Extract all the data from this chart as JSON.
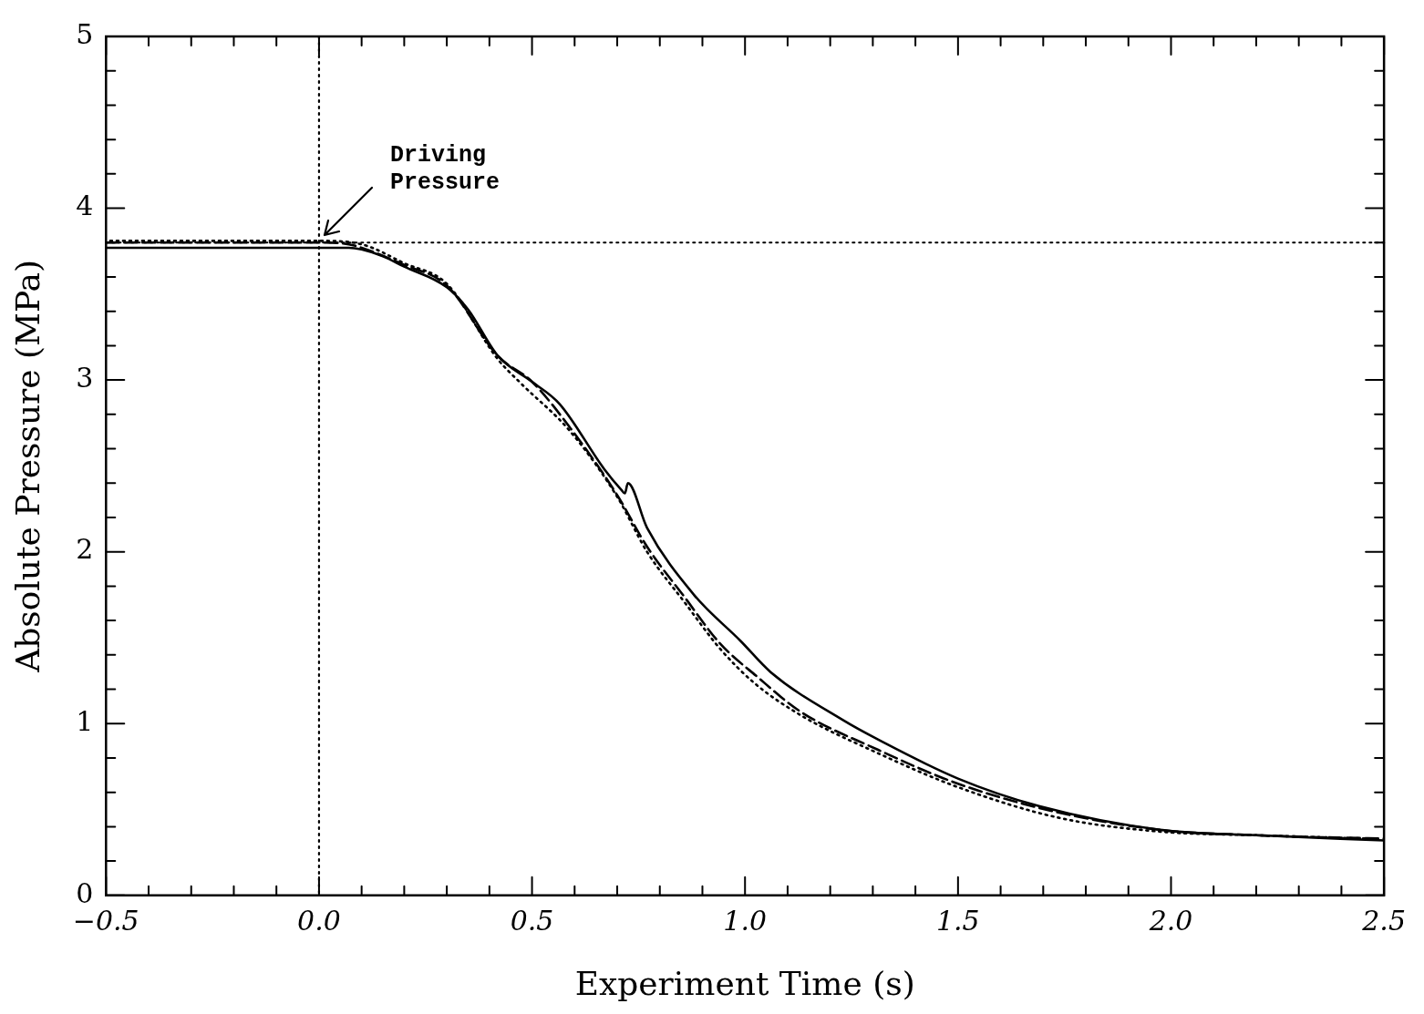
{
  "chart_data": {
    "type": "line",
    "xlabel": "Experiment Time (s)",
    "ylabel": "Absolute Pressure (MPa)",
    "xlim": [
      -0.5,
      2.5
    ],
    "ylim": [
      0,
      5
    ],
    "xticks": [
      {
        "value": -0.5,
        "label": "−0.5"
      },
      {
        "value": -0.4,
        "label": null
      },
      {
        "value": -0.3,
        "label": null
      },
      {
        "value": -0.2,
        "label": null
      },
      {
        "value": -0.1,
        "label": null
      },
      {
        "value": 0,
        "label": "0.0"
      },
      {
        "value": 0.1,
        "label": null
      },
      {
        "value": 0.2,
        "label": null
      },
      {
        "value": 0.3,
        "label": null
      },
      {
        "value": 0.4,
        "label": null
      },
      {
        "value": 0.5,
        "label": "0.5"
      },
      {
        "value": 0.6,
        "label": null
      },
      {
        "value": 0.7,
        "label": null
      },
      {
        "value": 0.8,
        "label": null
      },
      {
        "value": 0.9,
        "label": null
      },
      {
        "value": 1,
        "label": "1.0"
      },
      {
        "value": 1.1,
        "label": null
      },
      {
        "value": 1.2,
        "label": null
      },
      {
        "value": 1.3,
        "label": null
      },
      {
        "value": 1.4,
        "label": null
      },
      {
        "value": 1.5,
        "label": "1.5"
      },
      {
        "value": 1.6,
        "label": null
      },
      {
        "value": 1.7,
        "label": null
      },
      {
        "value": 1.8,
        "label": null
      },
      {
        "value": 1.9,
        "label": null
      },
      {
        "value": 2,
        "label": "2.0"
      },
      {
        "value": 2.1,
        "label": null
      },
      {
        "value": 2.2,
        "label": null
      },
      {
        "value": 2.3,
        "label": null
      },
      {
        "value": 2.4,
        "label": null
      },
      {
        "value": 2.5,
        "label": "2.5"
      }
    ],
    "yticks": [
      0,
      {
        "value": 0.2,
        "label": null
      },
      {
        "value": 0.4,
        "label": null
      },
      {
        "value": 0.6,
        "label": null
      },
      {
        "value": 0.8,
        "label": null
      },
      1,
      {
        "value": 1.2,
        "label": null
      },
      {
        "value": 1.4,
        "label": null
      },
      {
        "value": 1.6,
        "label": null
      },
      {
        "value": 1.8,
        "label": null
      },
      2,
      {
        "value": 2.2,
        "label": null
      },
      {
        "value": 2.4,
        "label": null
      },
      {
        "value": 2.6,
        "label": null
      },
      {
        "value": 2.8,
        "label": null
      },
      3,
      {
        "value": 3.2,
        "label": null
      },
      {
        "value": 3.4,
        "label": null
      },
      {
        "value": 3.6,
        "label": null
      },
      {
        "value": 3.8,
        "label": null
      },
      4,
      {
        "value": 4.2,
        "label": null
      },
      {
        "value": 4.4,
        "label": null
      },
      {
        "value": 4.6,
        "label": null
      },
      {
        "value": 4.8,
        "label": null
      },
      5
    ],
    "grid": false,
    "legend": false,
    "marker": "none",
    "series": [
      {
        "color": "#000000",
        "line_style": "solid",
        "x": [
          -0.5,
          0,
          0.07,
          0.1,
          0.15,
          0.2,
          0.3,
          0.35,
          0.42,
          0.5,
          0.565,
          0.67,
          0.71,
          0.718,
          0.725,
          0.77,
          0.88,
          0.99,
          1.06,
          1.23,
          1.31,
          1.5,
          1.69,
          1.98,
          2.2,
          2.5
        ],
        "values": [
          3.77,
          3.77,
          3.77,
          3.76,
          3.72,
          3.66,
          3.54,
          3.41,
          3.14,
          2.99,
          2.86,
          2.48,
          2.36,
          2.34,
          2.4,
          2.14,
          1.75,
          1.48,
          1.3,
          1.02,
          0.91,
          0.68,
          0.52,
          0.38,
          0.35,
          0.32
        ]
      },
      {
        "color": "#000000",
        "line_style": "dashed",
        "x": [
          -0.5,
          0,
          0.07,
          0.1,
          0.2,
          0.3,
          0.42,
          0.5,
          0.59,
          0.7,
          0.77,
          0.86,
          0.94,
          1.03,
          1.13,
          1.31,
          1.5,
          1.74,
          1.98,
          2.2,
          2.5
        ],
        "values": [
          3.8,
          3.8,
          3.79,
          3.77,
          3.67,
          3.55,
          3.14,
          2.99,
          2.72,
          2.33,
          2.03,
          1.73,
          1.47,
          1.27,
          1.07,
          0.85,
          0.65,
          0.48,
          0.38,
          0.35,
          0.33
        ]
      },
      {
        "color": "#000000",
        "line_style": "dotted",
        "x": [
          -0.49,
          0,
          0.1,
          0.2,
          0.3,
          0.42,
          0.47,
          0.59,
          0.7,
          0.77,
          0.86,
          0.94,
          1.02,
          1.13,
          1.31,
          1.5,
          1.74,
          1.98,
          2.2,
          2.47
        ],
        "values": [
          3.81,
          3.81,
          3.79,
          3.68,
          3.56,
          3.12,
          2.99,
          2.7,
          2.32,
          2.0,
          1.7,
          1.44,
          1.24,
          1.05,
          0.83,
          0.63,
          0.45,
          0.37,
          0.35,
          0.33
        ]
      }
    ],
    "ref_lines": [
      {
        "axis": "x",
        "value": 0,
        "line_style": "dotted",
        "color": "#000000"
      },
      {
        "axis": "y",
        "value": 3.8,
        "line_style": "dotted",
        "color": "#000000"
      }
    ],
    "annotations": [
      "Driving Pressure"
    ]
  }
}
